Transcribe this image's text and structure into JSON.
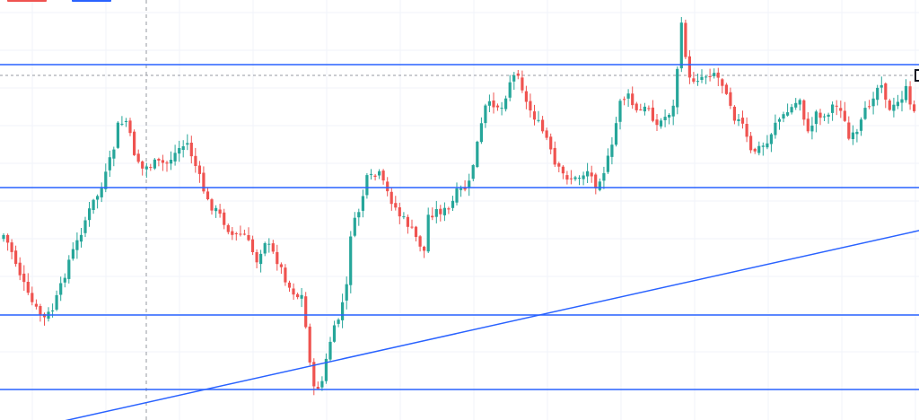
{
  "colors": {
    "background": "#ffffff",
    "grid": "#f0f3fa",
    "up": "#26a69a",
    "down": "#ef5350",
    "level_line": "#2962ff",
    "trend_line": "#2962ff",
    "crosshair": "#9598a1",
    "legend_red": "#ef5350",
    "legend_blue": "#2962ff"
  },
  "chart_data": {
    "type": "candlestick",
    "title": "",
    "xlabel": "",
    "ylabel": "",
    "ylim": [
      0,
      468
    ],
    "grid": true,
    "legend": "top-left",
    "anchors": [
      [
        0,
        262
      ],
      [
        2,
        280
      ],
      [
        4,
        305
      ],
      [
        6,
        330
      ],
      [
        8,
        345
      ],
      [
        10,
        355
      ],
      [
        12,
        345
      ],
      [
        14,
        320
      ],
      [
        16,
        290
      ],
      [
        18,
        270
      ],
      [
        20,
        245
      ],
      [
        22,
        225
      ],
      [
        24,
        210
      ],
      [
        27,
        165
      ],
      [
        28,
        140
      ],
      [
        30,
        135
      ],
      [
        32,
        170
      ],
      [
        34,
        188
      ],
      [
        37,
        182
      ],
      [
        40,
        182
      ],
      [
        43,
        165
      ],
      [
        45,
        160
      ],
      [
        47,
        185
      ],
      [
        50,
        225
      ],
      [
        53,
        240
      ],
      [
        56,
        262
      ],
      [
        59,
        262
      ],
      [
        62,
        290
      ],
      [
        64,
        268
      ],
      [
        67,
        290
      ],
      [
        70,
        320
      ],
      [
        72,
        330
      ],
      [
        73,
        330
      ],
      [
        75,
        400
      ],
      [
        76,
        435
      ],
      [
        78,
        425
      ],
      [
        80,
        380
      ],
      [
        82,
        355
      ],
      [
        84,
        320
      ],
      [
        85,
        260
      ],
      [
        87,
        235
      ],
      [
        89,
        200
      ],
      [
        92,
        195
      ],
      [
        94,
        215
      ],
      [
        97,
        240
      ],
      [
        99,
        250
      ],
      [
        101,
        265
      ],
      [
        103,
        280
      ],
      [
        104,
        240
      ],
      [
        106,
        235
      ],
      [
        109,
        235
      ],
      [
        111,
        215
      ],
      [
        113,
        210
      ],
      [
        114,
        205
      ],
      [
        116,
        160
      ],
      [
        118,
        120
      ],
      [
        120,
        115
      ],
      [
        122,
        120
      ],
      [
        124,
        90
      ],
      [
        126,
        80
      ],
      [
        128,
        115
      ],
      [
        130,
        130
      ],
      [
        133,
        155
      ],
      [
        135,
        185
      ],
      [
        137,
        195
      ],
      [
        140,
        200
      ],
      [
        143,
        190
      ],
      [
        145,
        205
      ],
      [
        147,
        190
      ],
      [
        149,
        165
      ],
      [
        151,
        110
      ],
      [
        153,
        108
      ],
      [
        155,
        125
      ],
      [
        158,
        120
      ],
      [
        160,
        140
      ],
      [
        162,
        130
      ],
      [
        164,
        120
      ],
      [
        166,
        30
      ],
      [
        168,
        90
      ],
      [
        171,
        85
      ],
      [
        174,
        80
      ],
      [
        177,
        100
      ],
      [
        179,
        130
      ],
      [
        181,
        140
      ],
      [
        183,
        170
      ],
      [
        185,
        165
      ],
      [
        187,
        160
      ],
      [
        189,
        135
      ],
      [
        191,
        130
      ],
      [
        193,
        120
      ],
      [
        195,
        110
      ],
      [
        197,
        150
      ],
      [
        199,
        125
      ],
      [
        201,
        130
      ],
      [
        203,
        118
      ],
      [
        205,
        120
      ],
      [
        207,
        155
      ],
      [
        209,
        150
      ],
      [
        211,
        125
      ],
      [
        213,
        105
      ],
      [
        215,
        90
      ],
      [
        217,
        125
      ],
      [
        219,
        115
      ],
      [
        221,
        100
      ],
      [
        222,
        120
      ]
    ],
    "horizontal_levels": [
      72,
      209,
      351,
      434
    ],
    "resistance_dashed": 84,
    "trend_line": {
      "from": [
        0,
        484
      ],
      "to": [
        230,
        251
      ]
    }
  }
}
